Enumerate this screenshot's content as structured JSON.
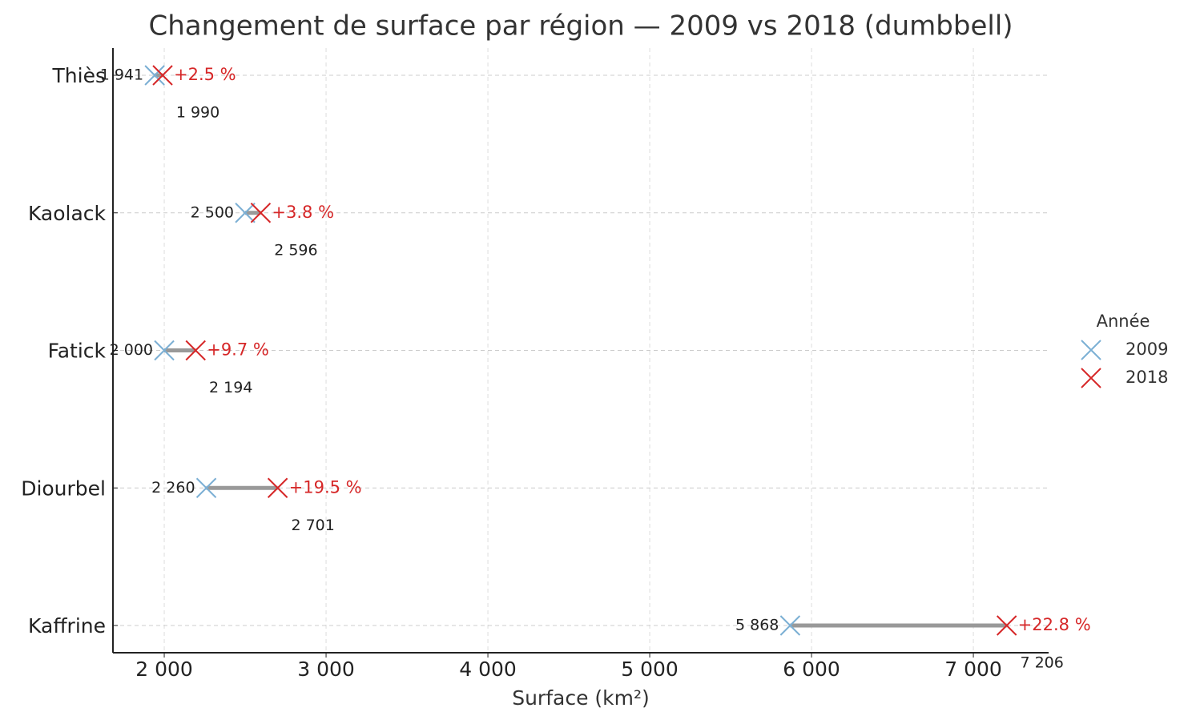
{
  "chart_data": {
    "type": "dumbbell",
    "title": "Changement de surface par région — 2009 vs 2018 (dumbbell)",
    "x_label": "Surface (km²)",
    "legend_title": "Année",
    "legend": "right",
    "grid": true,
    "categories": [
      "Thiès",
      "Kaolack",
      "Fatick",
      "Diourbel",
      "Kaffrine"
    ],
    "series": [
      {
        "name": "2009",
        "color": "#7bafd4",
        "values": [
          1941,
          2500,
          2000,
          2260,
          5868
        ],
        "value_labels": [
          "1 941",
          "2 500",
          "2 000",
          "2 260",
          "5 868"
        ]
      },
      {
        "name": "2018",
        "color": "#d62728",
        "values": [
          1990,
          2596,
          2194,
          2701,
          7206
        ],
        "value_labels": [
          "1 990",
          "2 596",
          "2 194",
          "2 701",
          "7 206"
        ]
      }
    ],
    "change_labels": [
      "+2.5 %",
      "+3.8 %",
      "+9.7 %",
      "+19.5 %",
      "+22.8 %"
    ],
    "connector_color": "#999999",
    "xlim": [
      1683,
      7465
    ],
    "xticks": [
      {
        "value": 2000,
        "label": "2 000"
      },
      {
        "value": 3000,
        "label": "3 000"
      },
      {
        "value": 4000,
        "label": "4 000"
      },
      {
        "value": 5000,
        "label": "5 000"
      },
      {
        "value": 6000,
        "label": "6 000"
      },
      {
        "value": 7000,
        "label": "7 000"
      }
    ]
  }
}
